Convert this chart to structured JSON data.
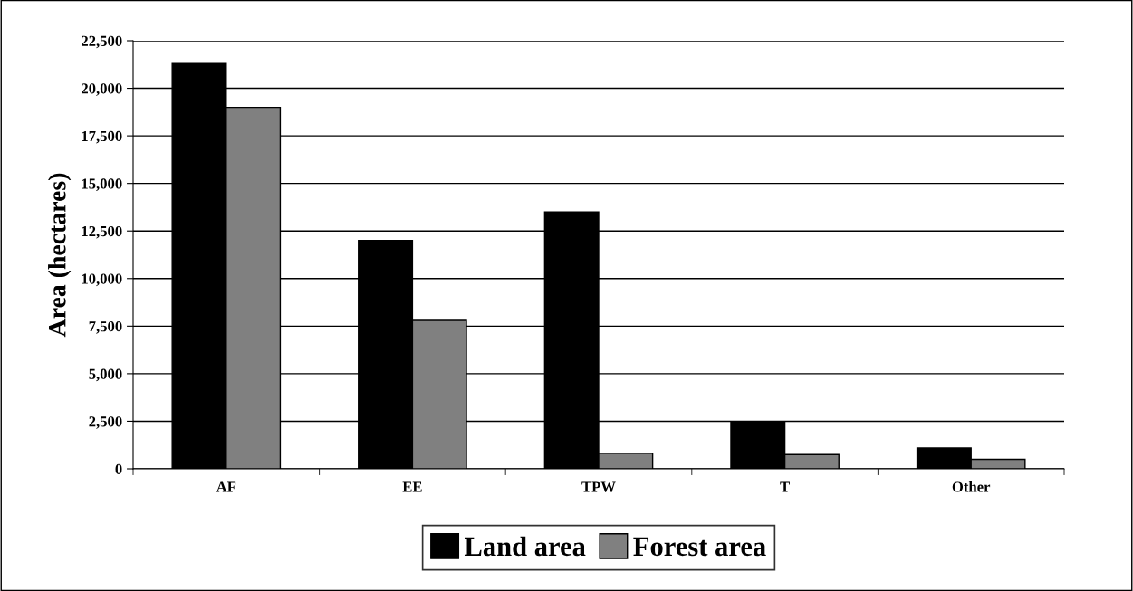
{
  "chart_data": {
    "type": "bar",
    "ylabel": "Area (hectares)",
    "categories": [
      "AF",
      "EE",
      "TPW",
      "T",
      "Other"
    ],
    "series": [
      {
        "name": "Land area",
        "color": "#000000",
        "values": [
          21300,
          12000,
          13500,
          2450,
          1100
        ]
      },
      {
        "name": "Forest area",
        "color": "#808080",
        "values": [
          19000,
          7800,
          820,
          750,
          500
        ]
      }
    ],
    "ylim": [
      0,
      22500
    ],
    "yticks": [
      {
        "value": 0,
        "label": "0"
      },
      {
        "value": 2500,
        "label": "2,500"
      },
      {
        "value": 5000,
        "label": "5,000"
      },
      {
        "value": 7500,
        "label": "7,500"
      },
      {
        "value": 10000,
        "label": "10,000"
      },
      {
        "value": 12500,
        "label": "12,500"
      },
      {
        "value": 15000,
        "label": "15,000"
      },
      {
        "value": 17500,
        "label": "17,500"
      },
      {
        "value": 20000,
        "label": "20,000"
      },
      {
        "value": 22500,
        "label": "22,500"
      }
    ],
    "grid": "y",
    "legend": "bottom"
  }
}
